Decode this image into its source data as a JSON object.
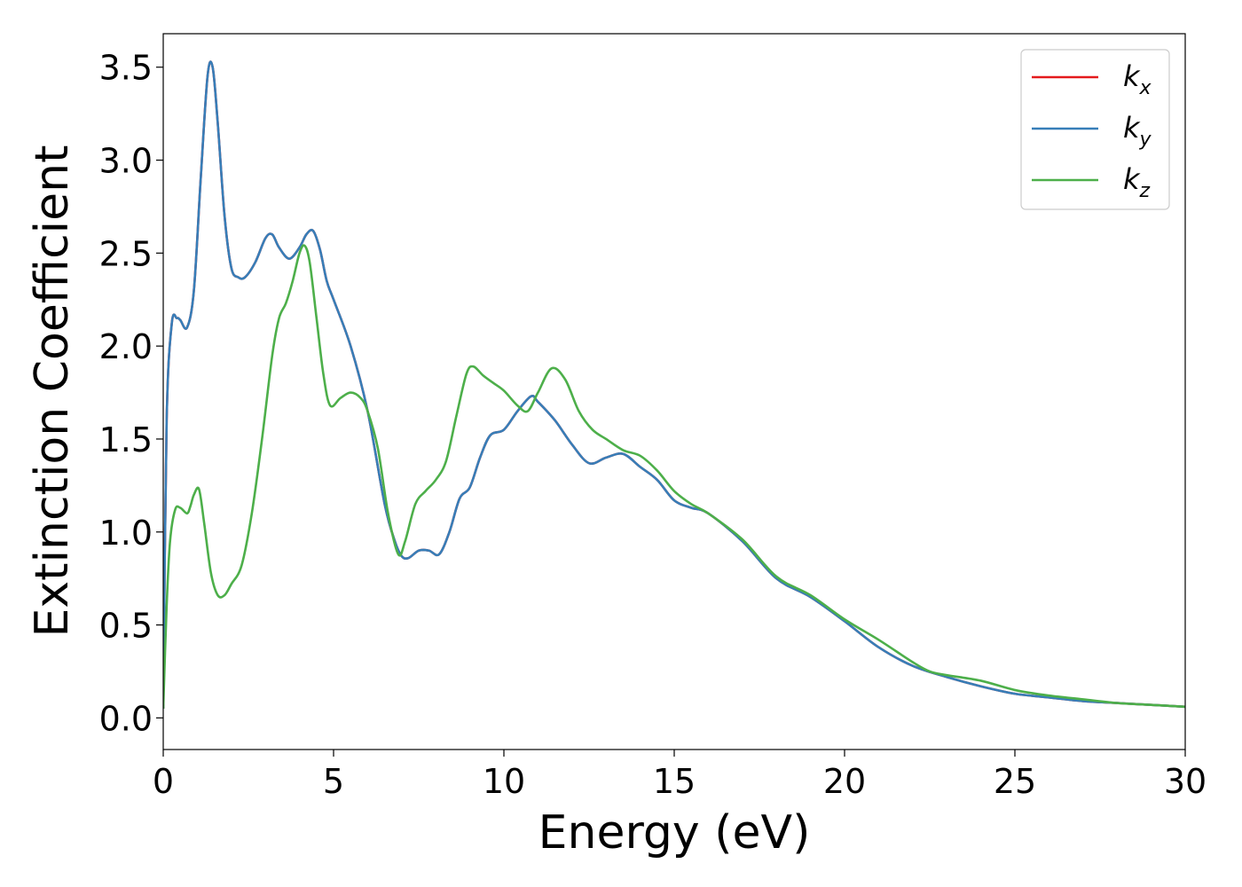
{
  "chart_data": {
    "type": "line",
    "title": "",
    "xlabel": "Energy (eV)",
    "ylabel": "Extinction Coefficient",
    "xlim": [
      0,
      30
    ],
    "ylim": [
      -0.17,
      3.68
    ],
    "xticks": [
      0,
      5,
      10,
      15,
      20,
      25,
      30
    ],
    "xtick_labels": [
      "0",
      "5",
      "10",
      "15",
      "20",
      "25",
      "30"
    ],
    "yticks": [
      0.0,
      0.5,
      1.0,
      1.5,
      2.0,
      2.5,
      3.0,
      3.5
    ],
    "ytick_labels": [
      "0.0",
      "0.5",
      "1.0",
      "1.5",
      "2.0",
      "2.5",
      "3.0",
      "3.5"
    ],
    "grid": false,
    "legend_position": "top-right",
    "series": [
      {
        "name": "k_x",
        "legend_base": "k",
        "legend_sub": "x",
        "color": "#e41a1c",
        "x": [
          0,
          0.1,
          0.25,
          0.4,
          0.5,
          0.7,
          0.9,
          1.1,
          1.3,
          1.45,
          1.6,
          1.8,
          2.0,
          2.2,
          2.4,
          2.7,
          3.0,
          3.2,
          3.4,
          3.7,
          4.0,
          4.2,
          4.4,
          4.6,
          4.8,
          5.0,
          5.5,
          6.0,
          6.5,
          6.8,
          7.0,
          7.2,
          7.5,
          7.8,
          8.1,
          8.4,
          8.7,
          9.0,
          9.3,
          9.6,
          10.0,
          10.4,
          10.8,
          11.0,
          11.5,
          12.0,
          12.5,
          13.0,
          13.5,
          14.0,
          14.5,
          15.0,
          15.5,
          16.0,
          17.0,
          18.0,
          19.0,
          20.0,
          21.0,
          22.0,
          23.0,
          24.0,
          25.0,
          26.0,
          27.0,
          28.0,
          29.0,
          30.0
        ],
        "y": [
          0.05,
          1.6,
          2.12,
          2.15,
          2.14,
          2.1,
          2.3,
          2.9,
          3.45,
          3.5,
          3.2,
          2.7,
          2.42,
          2.37,
          2.37,
          2.45,
          2.58,
          2.6,
          2.53,
          2.47,
          2.53,
          2.6,
          2.62,
          2.52,
          2.35,
          2.25,
          2.0,
          1.65,
          1.15,
          0.95,
          0.87,
          0.86,
          0.9,
          0.9,
          0.88,
          1.0,
          1.18,
          1.24,
          1.4,
          1.52,
          1.55,
          1.65,
          1.73,
          1.7,
          1.6,
          1.47,
          1.37,
          1.4,
          1.42,
          1.35,
          1.28,
          1.17,
          1.13,
          1.1,
          0.95,
          0.75,
          0.65,
          0.52,
          0.38,
          0.28,
          0.22,
          0.17,
          0.13,
          0.11,
          0.09,
          0.08,
          0.07,
          0.06
        ]
      },
      {
        "name": "k_y",
        "legend_base": "k",
        "legend_sub": "y",
        "color": "#377eb8",
        "x": [
          0,
          0.1,
          0.25,
          0.4,
          0.5,
          0.7,
          0.9,
          1.1,
          1.3,
          1.45,
          1.6,
          1.8,
          2.0,
          2.2,
          2.4,
          2.7,
          3.0,
          3.2,
          3.4,
          3.7,
          4.0,
          4.2,
          4.4,
          4.6,
          4.8,
          5.0,
          5.5,
          6.0,
          6.5,
          6.8,
          7.0,
          7.2,
          7.5,
          7.8,
          8.1,
          8.4,
          8.7,
          9.0,
          9.3,
          9.6,
          10.0,
          10.4,
          10.8,
          11.0,
          11.5,
          12.0,
          12.5,
          13.0,
          13.5,
          14.0,
          14.5,
          15.0,
          15.5,
          16.0,
          17.0,
          18.0,
          19.0,
          20.0,
          21.0,
          22.0,
          23.0,
          24.0,
          25.0,
          26.0,
          27.0,
          28.0,
          29.0,
          30.0
        ],
        "y": [
          0.05,
          1.6,
          2.12,
          2.15,
          2.14,
          2.1,
          2.3,
          2.9,
          3.45,
          3.5,
          3.2,
          2.7,
          2.42,
          2.37,
          2.37,
          2.45,
          2.58,
          2.6,
          2.53,
          2.47,
          2.53,
          2.6,
          2.62,
          2.52,
          2.35,
          2.25,
          2.0,
          1.65,
          1.15,
          0.95,
          0.87,
          0.86,
          0.9,
          0.9,
          0.88,
          1.0,
          1.18,
          1.24,
          1.4,
          1.52,
          1.55,
          1.65,
          1.73,
          1.7,
          1.6,
          1.47,
          1.37,
          1.4,
          1.42,
          1.35,
          1.28,
          1.17,
          1.13,
          1.1,
          0.95,
          0.75,
          0.65,
          0.52,
          0.38,
          0.28,
          0.22,
          0.17,
          0.13,
          0.11,
          0.09,
          0.08,
          0.07,
          0.06
        ]
      },
      {
        "name": "k_z",
        "legend_base": "k",
        "legend_sub": "z",
        "color": "#4daf4a",
        "x": [
          0,
          0.1,
          0.2,
          0.35,
          0.5,
          0.7,
          0.8,
          0.9,
          1.05,
          1.2,
          1.4,
          1.6,
          1.8,
          2.0,
          2.3,
          2.6,
          2.9,
          3.2,
          3.4,
          3.6,
          3.8,
          4.0,
          4.15,
          4.3,
          4.5,
          4.7,
          4.9,
          5.2,
          5.5,
          5.8,
          6.0,
          6.3,
          6.6,
          6.9,
          7.1,
          7.4,
          7.7,
          8.0,
          8.3,
          8.6,
          8.9,
          9.1,
          9.4,
          9.7,
          10.0,
          10.4,
          10.7,
          11.0,
          11.4,
          11.8,
          12.2,
          12.6,
          13.0,
          13.5,
          14.0,
          14.5,
          15.0,
          15.5,
          16.0,
          17.0,
          18.0,
          19.0,
          20.0,
          21.0,
          22.0,
          22.5,
          23.0,
          24.0,
          25.0,
          26.0,
          27.0,
          28.0,
          29.0,
          30.0
        ],
        "y": [
          0.05,
          0.6,
          0.95,
          1.12,
          1.13,
          1.1,
          1.14,
          1.2,
          1.23,
          1.05,
          0.78,
          0.66,
          0.66,
          0.72,
          0.82,
          1.1,
          1.5,
          1.95,
          2.15,
          2.23,
          2.35,
          2.5,
          2.54,
          2.45,
          2.15,
          1.85,
          1.68,
          1.72,
          1.75,
          1.72,
          1.65,
          1.45,
          1.1,
          0.88,
          0.95,
          1.15,
          1.22,
          1.28,
          1.38,
          1.62,
          1.85,
          1.89,
          1.84,
          1.8,
          1.76,
          1.68,
          1.65,
          1.75,
          1.88,
          1.82,
          1.65,
          1.55,
          1.5,
          1.44,
          1.41,
          1.33,
          1.22,
          1.15,
          1.1,
          0.96,
          0.76,
          0.66,
          0.53,
          0.42,
          0.3,
          0.25,
          0.23,
          0.2,
          0.15,
          0.12,
          0.1,
          0.08,
          0.07,
          0.06
        ]
      }
    ]
  }
}
